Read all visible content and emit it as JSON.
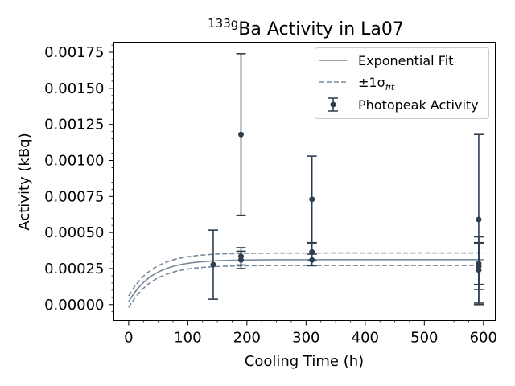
{
  "chart_data": {
    "type": "scatter",
    "title_main": "Ba Activity in La07",
    "title_super": "133g",
    "xlabel": "Cooling Time (h)",
    "ylabel": "Activity (kBq)",
    "xlim": [
      -25,
      620
    ],
    "ylim": [
      -0.00011,
      0.00182
    ],
    "xticks": [
      0,
      100,
      200,
      300,
      400,
      500,
      600
    ],
    "xtick_labels": [
      "0",
      "100",
      "200",
      "300",
      "400",
      "500",
      "600"
    ],
    "yticks": [
      0,
      0.00025,
      0.0005,
      0.00075,
      0.001,
      0.00125,
      0.0015,
      0.00175
    ],
    "ytick_labels": [
      "0.00000",
      "0.00025",
      "0.00050",
      "0.00075",
      "0.00100",
      "0.00125",
      "0.00150",
      "0.00175"
    ],
    "legend_position": "top-right",
    "legend": {
      "fit": "Exponential Fit",
      "band_prefix": "±1σ",
      "band_sub": "fit",
      "points": "Photopeak Activity"
    },
    "colors": {
      "fit_line": "#778899",
      "band_line": "#778899",
      "points": "#2c3e50"
    },
    "fit": {
      "a_inf": 0.000312,
      "a0": 2e-05,
      "tau_h": 41,
      "upper_a_inf": 0.000358,
      "upper_a0": 6e-05,
      "lower_a_inf": 0.000272,
      "lower_a0": -2e-05
    },
    "points": [
      {
        "x": 143,
        "y": 0.000277,
        "err": 0.00024
      },
      {
        "x": 190,
        "y": 0.00118,
        "err": 0.00056
      },
      {
        "x": 190,
        "y": 0.000335,
        "err": 6e-05
      },
      {
        "x": 190,
        "y": 0.00031,
        "err": 6e-05
      },
      {
        "x": 310,
        "y": 0.00073,
        "err": 0.0003
      },
      {
        "x": 310,
        "y": 0.000365,
        "err": 6e-05
      },
      {
        "x": 310,
        "y": 0.00031,
        "err": 4e-05
      },
      {
        "x": 592,
        "y": 0.00059,
        "err": 0.00059
      },
      {
        "x": 592,
        "y": 0.000285,
        "err": 0.000145
      },
      {
        "x": 592,
        "y": 0.000265,
        "err": 0.00016
      },
      {
        "x": 592,
        "y": 0.00024,
        "err": 0.00023
      }
    ]
  }
}
